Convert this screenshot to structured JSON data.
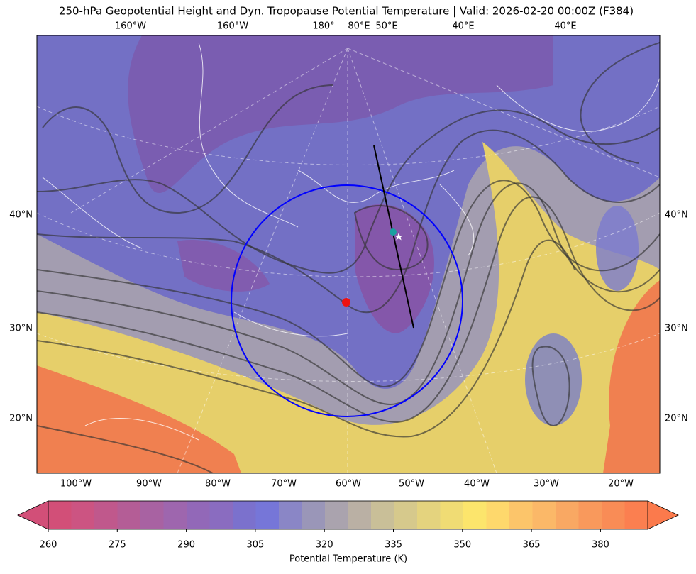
{
  "title": "250-hPa Geopotential Height and Dyn. Tropopause Potential Temperature   |  Valid: 2026-02-20 00:00Z (F384)",
  "axes": {
    "top": [
      "160°W",
      "160°W",
      "180°",
      "80°E",
      "50°E",
      "40°E",
      "40°E"
    ],
    "left": [
      "40°N",
      "30°N",
      "20°N"
    ],
    "right": [
      "40°N",
      "30°N",
      "20°N"
    ],
    "bottom": [
      "100°W",
      "90°W",
      "80°W",
      "70°W",
      "60°W",
      "50°W",
      "40°W",
      "30°W",
      "20°W"
    ]
  },
  "colorbar": {
    "ticks": [
      260,
      275,
      290,
      305,
      320,
      335,
      350,
      365,
      380
    ],
    "label": "Potential Temperature (K)"
  }
}
